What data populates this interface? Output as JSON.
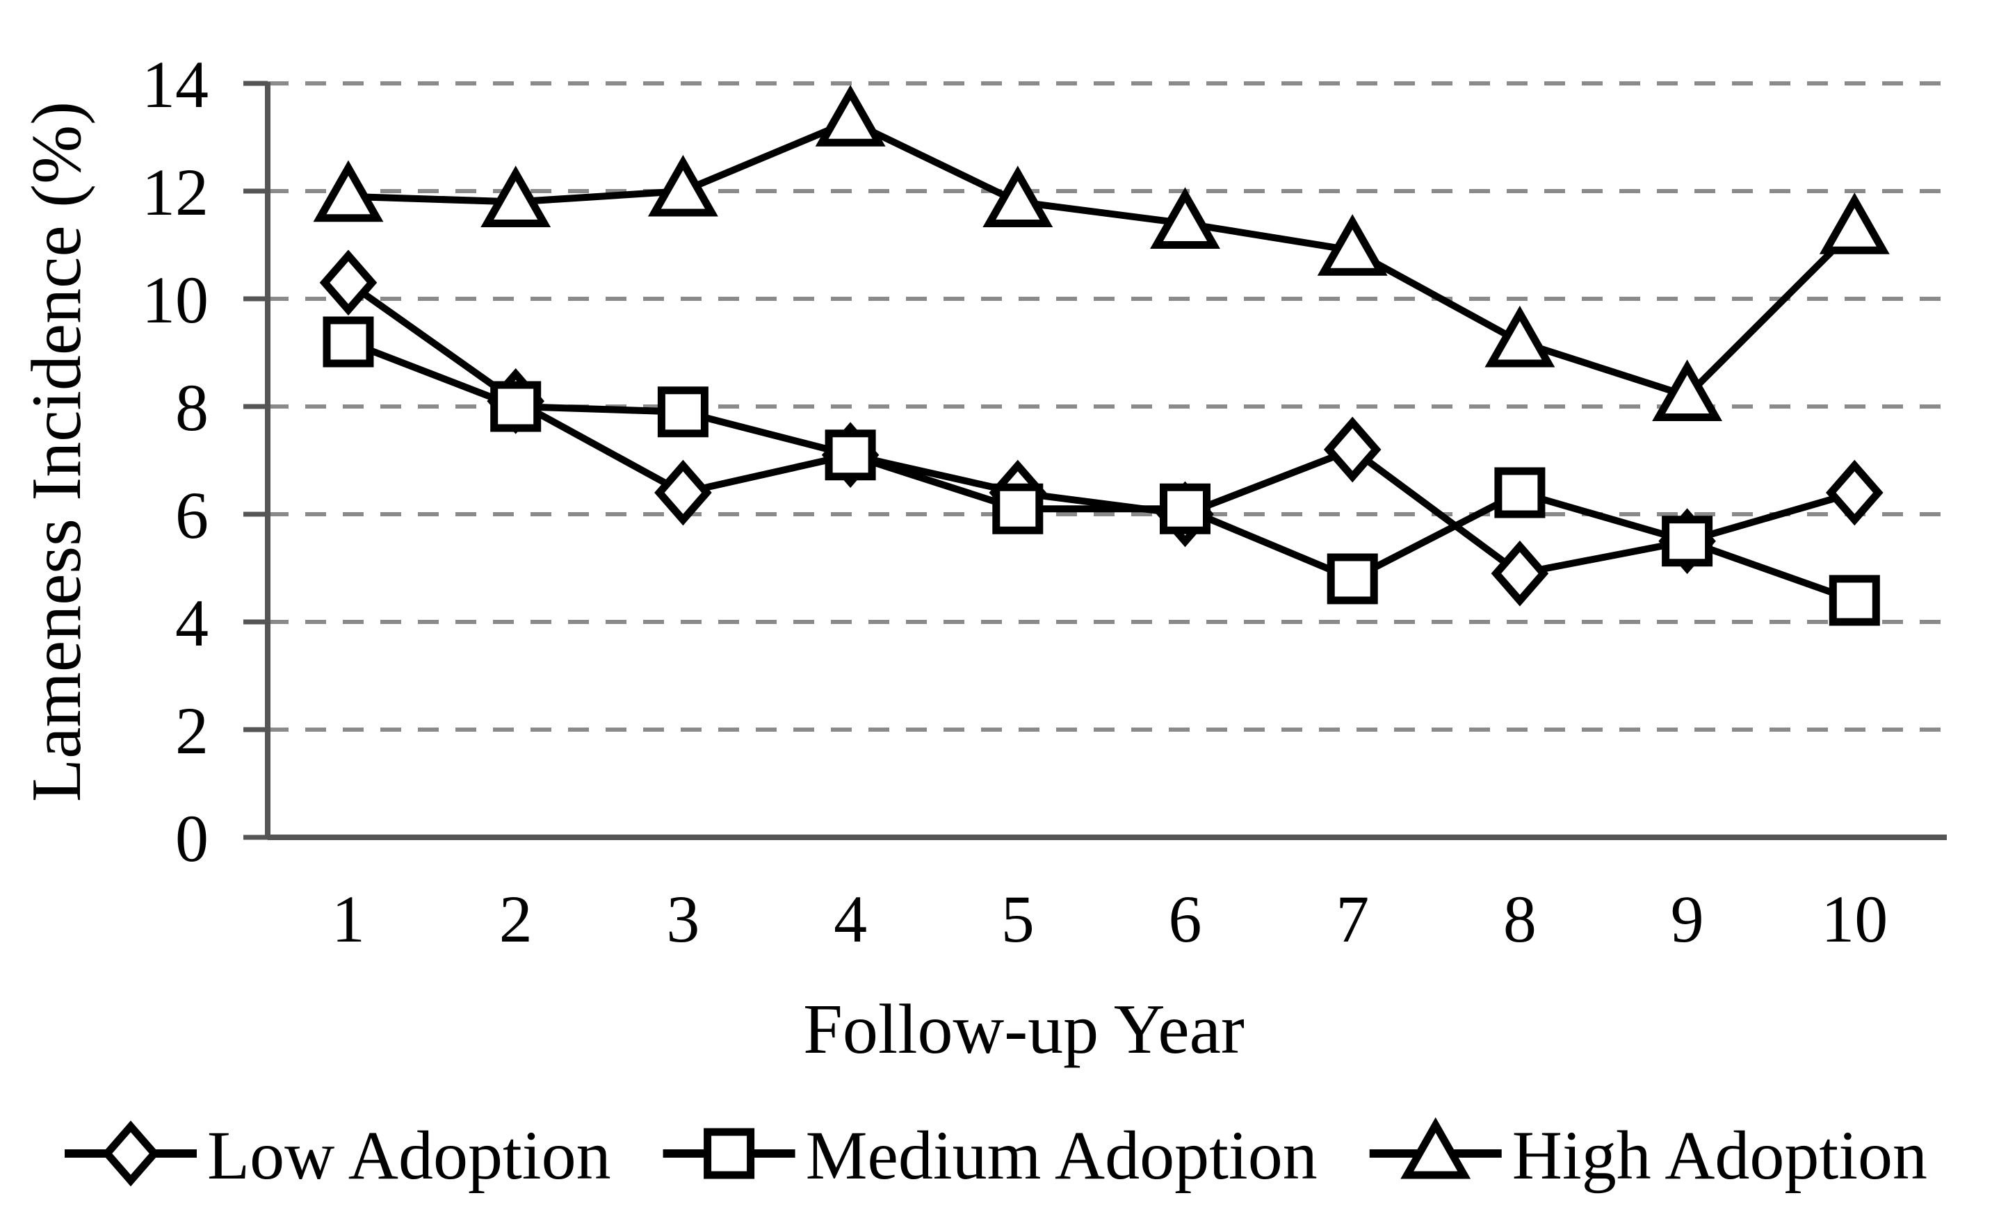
{
  "figure": {
    "background": "#ffffff"
  },
  "chart_data": {
    "type": "line",
    "title": "",
    "xlabel": "Follow-up Year",
    "ylabel": "Lameness Incidence (%)",
    "categories": [
      1,
      2,
      3,
      4,
      5,
      6,
      7,
      8,
      9,
      10
    ],
    "yticks": [
      0,
      2,
      4,
      6,
      8,
      10,
      12,
      14
    ],
    "ylim": [
      0,
      14
    ],
    "grid": "horizontal-dashed",
    "legend_position": "bottom",
    "series": [
      {
        "name": "Low Adoption",
        "marker": "diamond",
        "values": [
          10.3,
          8.1,
          6.4,
          7.1,
          6.4,
          6.0,
          7.2,
          4.9,
          5.5,
          6.4
        ]
      },
      {
        "name": "Medium Adoption",
        "marker": "square",
        "values": [
          9.2,
          8.0,
          7.9,
          7.1,
          6.1,
          6.1,
          4.8,
          6.4,
          5.5,
          4.4
        ]
      },
      {
        "name": "High Adoption",
        "marker": "triangle",
        "values": [
          11.9,
          11.8,
          12.0,
          13.3,
          11.8,
          11.4,
          10.9,
          9.2,
          8.2,
          11.3
        ]
      }
    ],
    "colors": {
      "series_line": "#000000",
      "marker_fill": "#ffffff",
      "gridline": "#8a8a8a",
      "axis": "#555555",
      "text": "#000000",
      "background": "#ffffff"
    }
  }
}
